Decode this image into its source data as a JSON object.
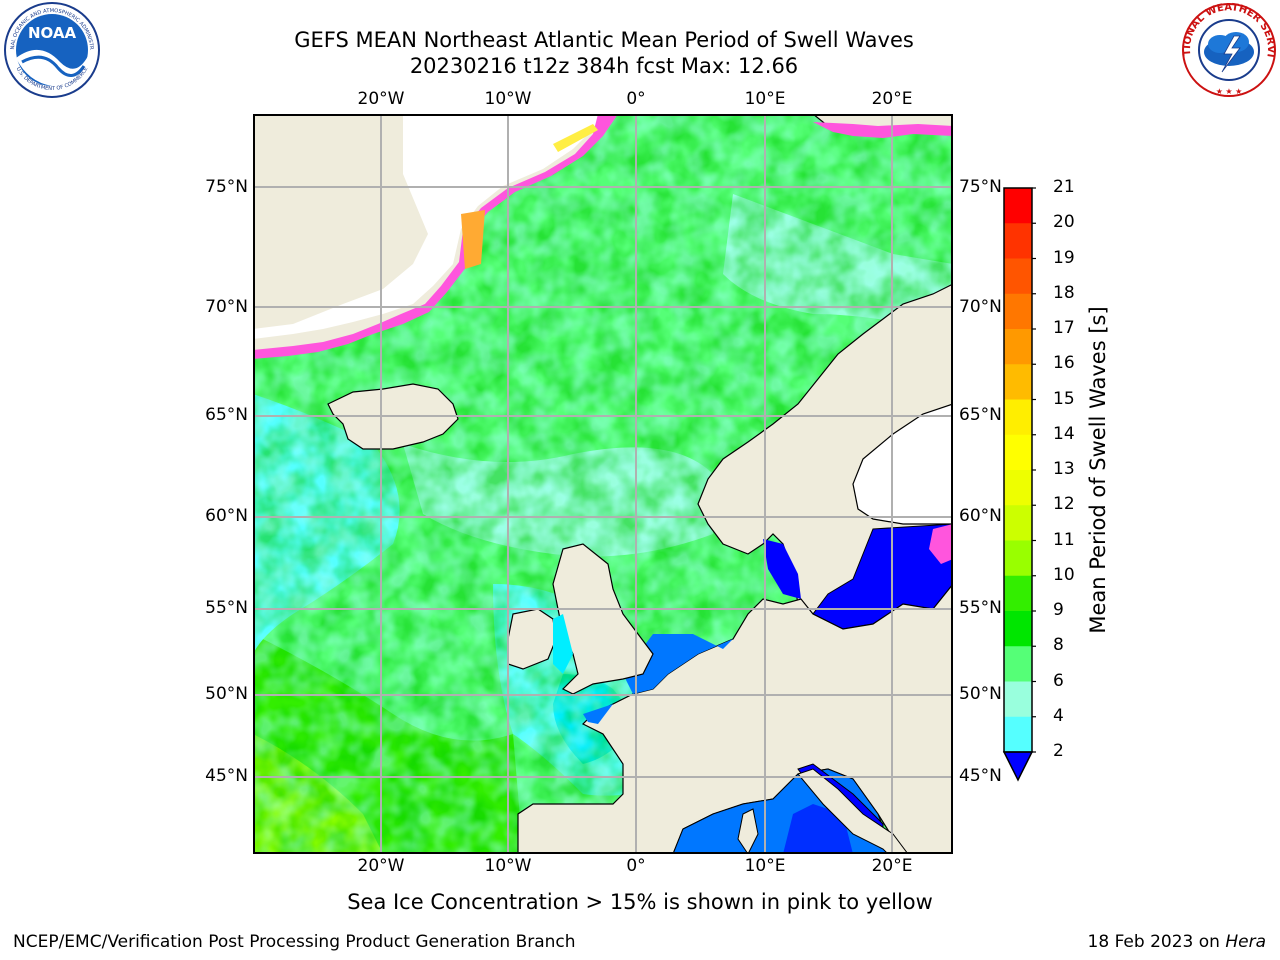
{
  "header": {
    "title_line1": "GEFS MEAN Northeast Atlantic Mean Period of Swell Waves",
    "title_line2": "20230216 t12z 384h fcst   Max: 12.66"
  },
  "logos": {
    "left": "noaa-logo",
    "left_text": "NOAA",
    "left_ring_top": "NATIONAL OCEANIC AND ATMOSPHERIC ADMINISTRATION",
    "left_ring_bottom": "U.S. DEPARTMENT OF COMMERCE",
    "right": "nws-logo",
    "right_ring": "NATIONAL WEATHER SERVICE"
  },
  "map": {
    "lon_ticks": [
      "20°W",
      "10°W",
      "0°",
      "10°E",
      "20°E"
    ],
    "lat_ticks": [
      "75°N",
      "70°N",
      "65°N",
      "60°N",
      "55°N",
      "50°N",
      "45°N"
    ],
    "colors": {
      "land": "#efecdc",
      "ice_free_white": "#ffffff",
      "ice_pink": "#ff55dd",
      "ice_orange": "#ffaa33",
      "ice_yellow": "#ffee44",
      "grid": "#b0b0b0"
    }
  },
  "colorbar": {
    "label": "Mean Period of Swell Waves [s]",
    "ticks": [
      "21",
      "20",
      "19",
      "18",
      "17",
      "16",
      "15",
      "14",
      "13",
      "12",
      "11",
      "10",
      "9",
      "8",
      "6",
      "4",
      "2"
    ],
    "colors": [
      "#ff0000",
      "#ff3300",
      "#ff5500",
      "#ff7700",
      "#ff9900",
      "#ffbb00",
      "#ffee00",
      "#ffff00",
      "#eeff00",
      "#ccff00",
      "#99ff00",
      "#33ee00",
      "#00e600",
      "#55ff77",
      "#99ffdd",
      "#55ffff",
      "#00eeff",
      "#0077ff"
    ],
    "under_color": "#0000ff"
  },
  "note": "Sea Ice Concentration > 15% is shown in pink to yellow",
  "footer": {
    "left": "NCEP/EMC/Verification Post Processing Product Generation Branch",
    "date": "18 Feb 2023 on",
    "machine": "Hera"
  }
}
